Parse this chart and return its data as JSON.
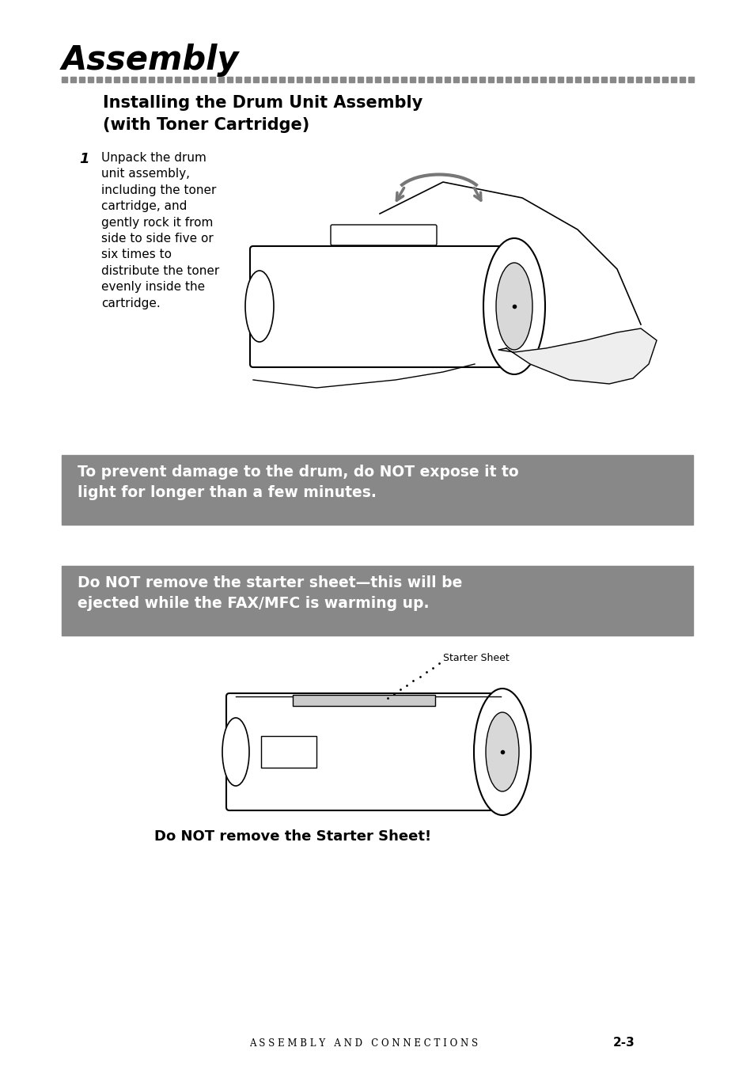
{
  "title": "Assembly",
  "dashed_line_color": "#888888",
  "section_title_line1": "Installing the Drum Unit Assembly",
  "section_title_line2": "(with Toner Cartridge)",
  "step1_number": "1",
  "step1_text": "Unpack the drum\nunit assembly,\nincluding the toner\ncartridge, and\ngently rock it from\nside to side five or\nsix times to\ndistribute the toner\nevenly inside the\ncartridge.",
  "warning1_bg": "#888888",
  "warning1_text": "To prevent damage to the drum, do NOT expose it to\nlight for longer than a few minutes.",
  "warning2_bg": "#888888",
  "warning2_text": "Do NOT remove the starter sheet—this will be\nejected while the FAX/MFC is warming up.",
  "starter_sheet_label": "Starter Sheet",
  "do_not_text": "Do NOT remove the Starter Sheet!",
  "footer_text": "A S S E M B L Y   A N D   C O N N E C T I O N S",
  "footer_page": "2-3",
  "bg_color": "#ffffff",
  "text_color": "#000000",
  "warning_text_color": "#ffffff"
}
